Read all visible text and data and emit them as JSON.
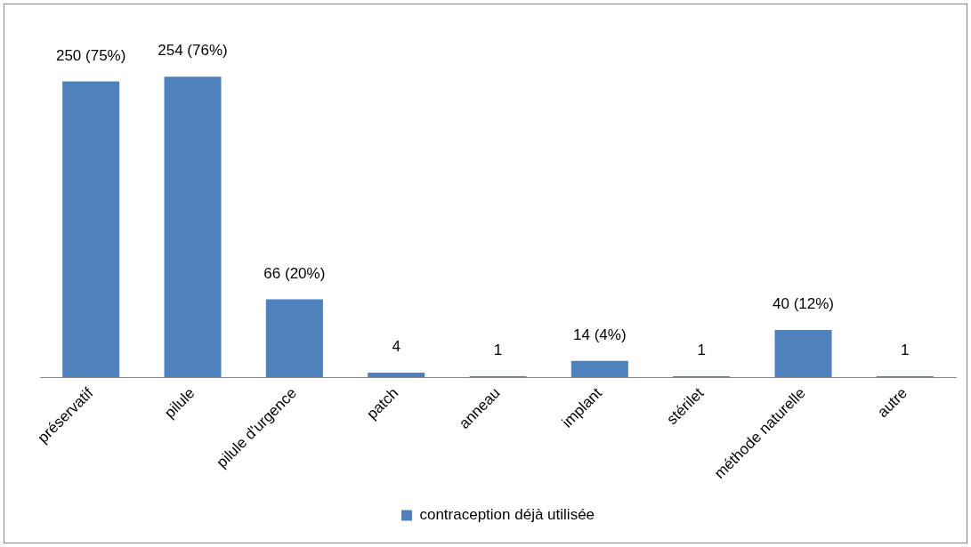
{
  "chart_data": {
    "type": "bar",
    "categories": [
      "préservatif",
      "pilule",
      "pilule d'urgence",
      "patch",
      "anneau",
      "implant",
      "stérilet",
      "méthode naturelle",
      "autre"
    ],
    "series": [
      {
        "name": "contraception déjà utilisée",
        "color": "#4f81bd",
        "values": [
          250,
          254,
          66,
          4,
          1,
          14,
          1,
          40,
          1
        ],
        "value_labels": [
          "250 (75%)",
          "254 (76%)",
          "66 (20%)",
          "4",
          "1",
          "14 (4%)",
          "1",
          "40 (12%)",
          "1"
        ]
      }
    ],
    "legend": "bottom",
    "grid": false
  }
}
